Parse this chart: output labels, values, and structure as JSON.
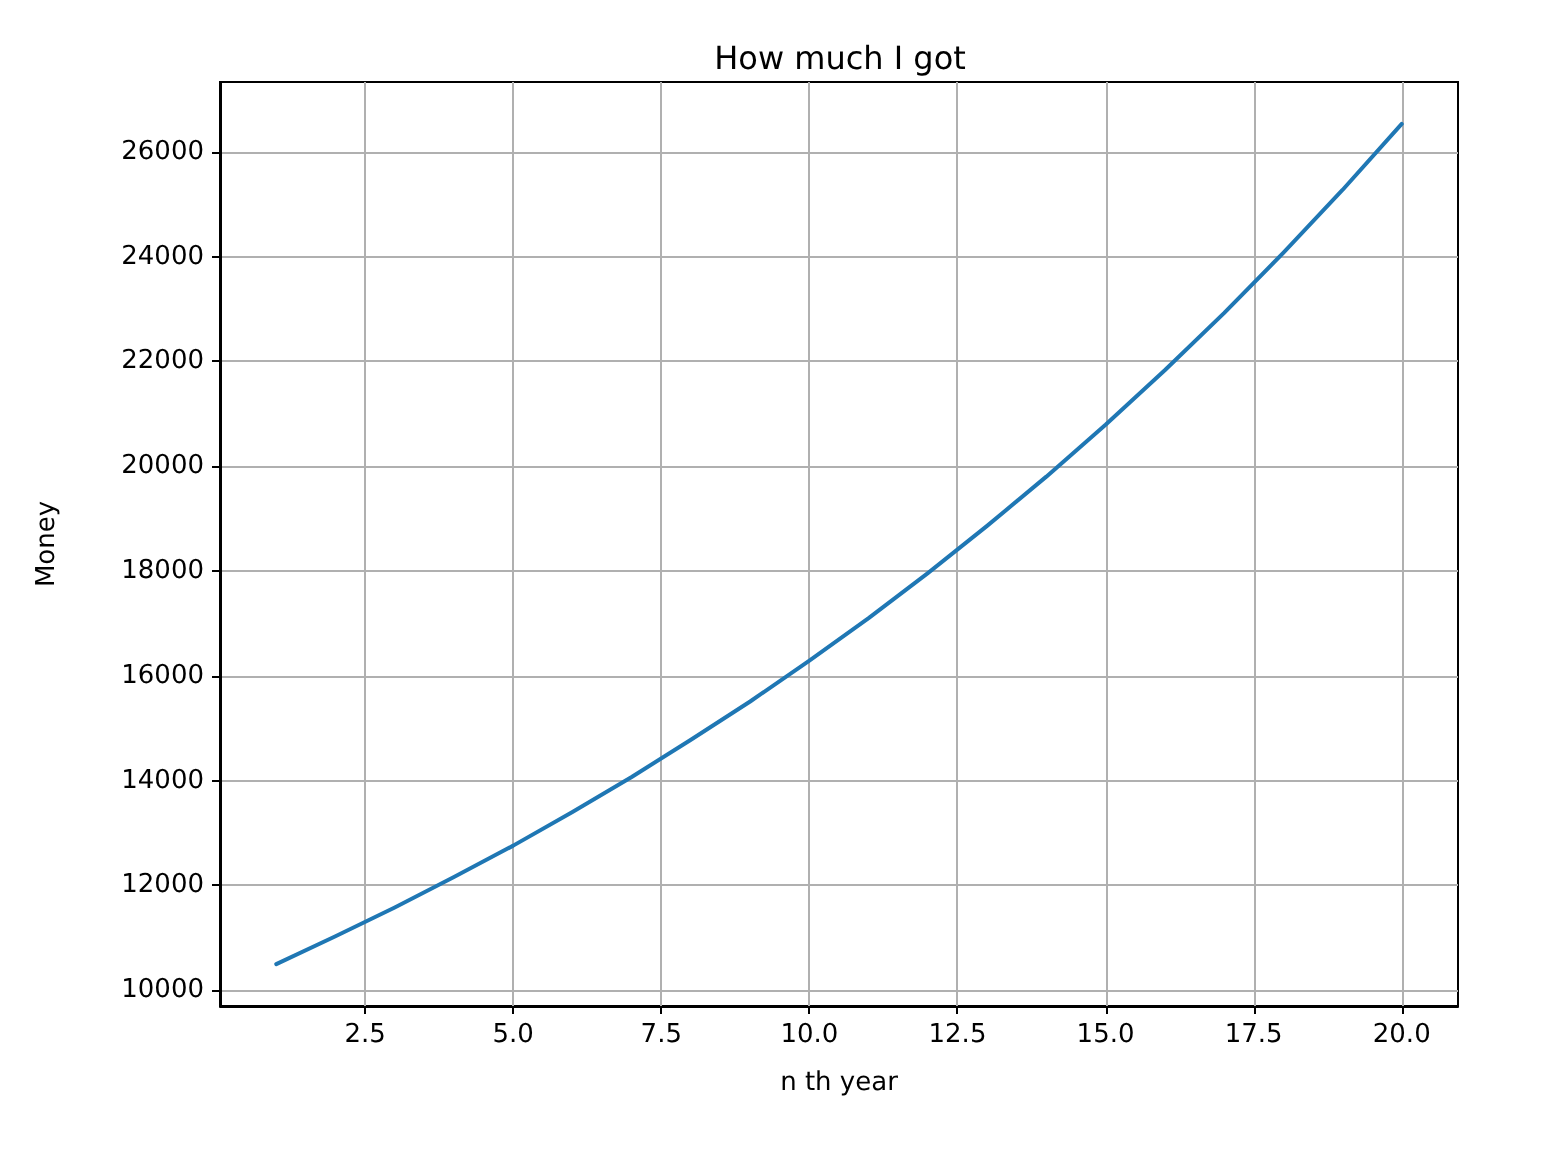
{
  "chart_data": {
    "type": "line",
    "title": "How much I got",
    "xlabel": "n th year",
    "ylabel": "Money",
    "x": [
      1,
      2,
      3,
      4,
      5,
      6,
      7,
      8,
      9,
      10,
      11,
      12,
      13,
      14,
      15,
      16,
      17,
      18,
      19,
      20
    ],
    "series": [
      {
        "color": "#1f77b4",
        "values": [
          10500,
          11030,
          11580,
          12160,
          12760,
          13400,
          14070,
          14780,
          15510,
          16290,
          17100,
          17960,
          18860,
          19800,
          20790,
          21830,
          22920,
          24070,
          25270,
          26530
        ]
      }
    ],
    "xlim": [
      0.05,
      20.95
    ],
    "xticks": [
      2.5,
      {
        "value": 5,
        "label": "5.0"
      },
      7.5,
      {
        "value": 10,
        "label": "10.0"
      },
      12.5,
      {
        "value": 15,
        "label": "15.0"
      },
      17.5,
      {
        "value": 20,
        "label": "20.0"
      }
    ],
    "ylim": [
      9700,
      27330
    ],
    "yticks": [
      10000,
      12000,
      14000,
      16000,
      18000,
      20000,
      22000,
      24000,
      26000
    ],
    "grid": true,
    "marker": "none",
    "line_style": "solid"
  }
}
